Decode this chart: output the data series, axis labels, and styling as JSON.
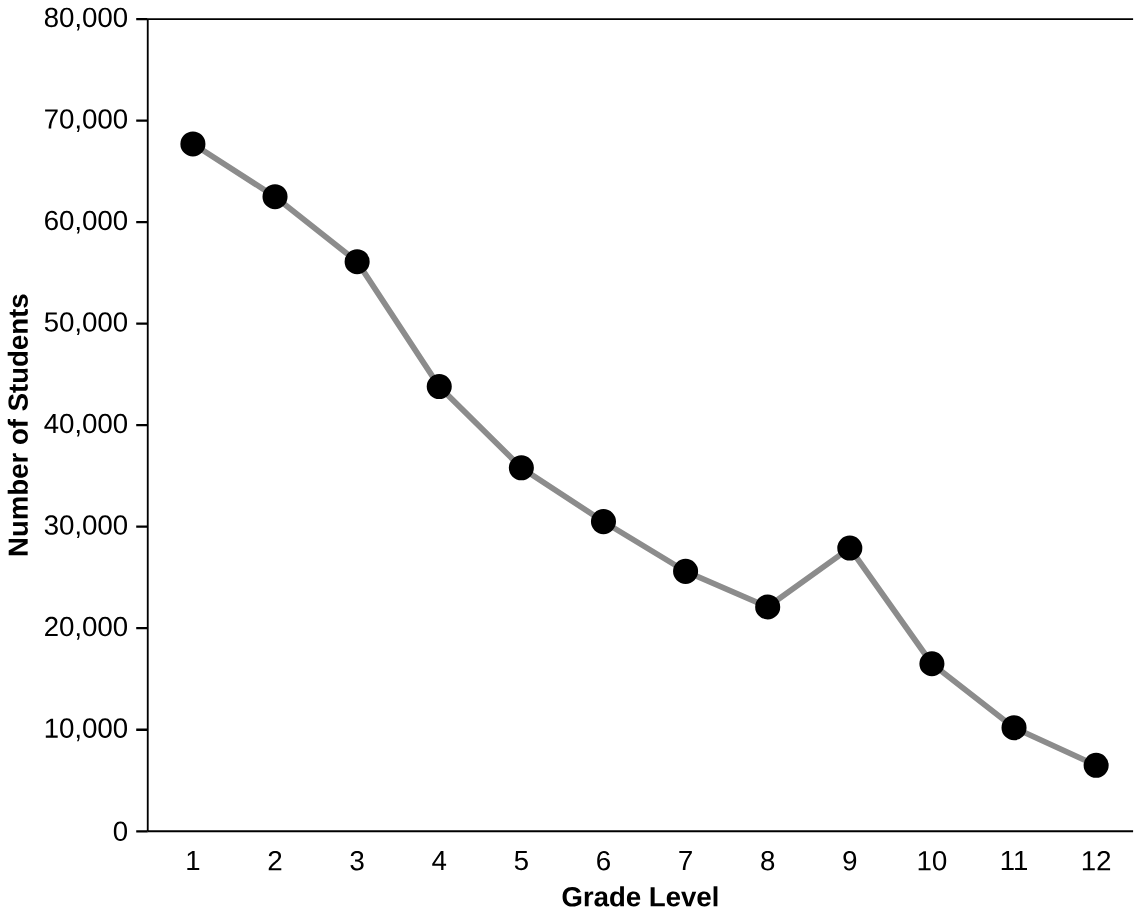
{
  "chart_data": {
    "type": "line",
    "xlabel": "Grade Level",
    "ylabel": "Number of Students",
    "categories": [
      "1",
      "2",
      "3",
      "4",
      "5",
      "6",
      "7",
      "8",
      "9",
      "10",
      "11",
      "12"
    ],
    "series": [
      {
        "color": "#8c8c8c",
        "values": [
          67700,
          62500,
          56100,
          43800,
          35800,
          30500,
          25600,
          22100,
          27900,
          16500,
          10200,
          6500
        ]
      }
    ],
    "ylim": [
      0,
      80000
    ],
    "yticks": [
      {
        "value": 0,
        "label": "0"
      },
      {
        "value": 10000,
        "label": "10,000"
      },
      {
        "value": 20000,
        "label": "20,000"
      },
      {
        "value": 30000,
        "label": "30,000"
      },
      {
        "value": 40000,
        "label": "40,000"
      },
      {
        "value": 50000,
        "label": "50,000"
      },
      {
        "value": 60000,
        "label": "60,000"
      },
      {
        "value": 70000,
        "label": "70,000"
      },
      {
        "value": 80000,
        "label": "80,000"
      }
    ],
    "grid": false,
    "marker": "circle",
    "line_style": "solid"
  }
}
